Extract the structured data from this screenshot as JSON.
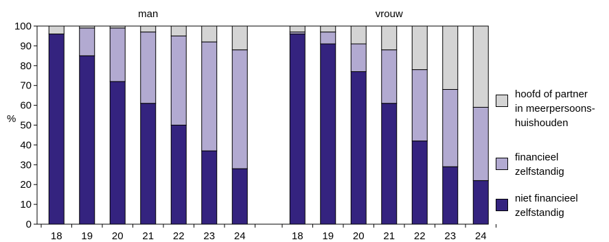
{
  "chart_data": {
    "type": "bar",
    "stacked": true,
    "groups": [
      "man",
      "vrouw"
    ],
    "categories": [
      "18",
      "19",
      "20",
      "21",
      "22",
      "23",
      "24"
    ],
    "ylabel": "%",
    "ylim": [
      0,
      100
    ],
    "yticks": [
      "0",
      "10",
      "20",
      "30",
      "40",
      "50",
      "60",
      "70",
      "80",
      "90",
      "100"
    ],
    "grid": false,
    "legend_position": "right",
    "series": [
      {
        "name": "niet financieel zelfstandig",
        "color": "#34237f",
        "values": {
          "man": [
            96,
            85,
            72,
            61,
            50,
            37,
            28
          ],
          "vrouw": [
            96,
            91,
            77,
            61,
            42,
            29,
            22
          ]
        }
      },
      {
        "name": "financieel zelfstandig",
        "color": "#b2aad1",
        "values": {
          "man": [
            0,
            14,
            27,
            36,
            45,
            55,
            60
          ],
          "vrouw": [
            1,
            6,
            14,
            27,
            36,
            39,
            37
          ]
        }
      },
      {
        "name": "hoofd of partner in meerpersoons-huishouden",
        "color": "#d4d4d4",
        "values": {
          "man": [
            4,
            1,
            1,
            3,
            5,
            8,
            12
          ],
          "vrouw": [
            3,
            3,
            9,
            12,
            22,
            32,
            41
          ]
        }
      }
    ]
  },
  "legend": [
    {
      "text": "hoofd of partner\nin meerpersoons-\nhuishouden",
      "color": "#d4d4d4"
    },
    {
      "text": "financieel\nzelfstandig",
      "color": "#b2aad1"
    },
    {
      "text": "niet financieel\nzelfstandig",
      "color": "#34237f"
    }
  ]
}
